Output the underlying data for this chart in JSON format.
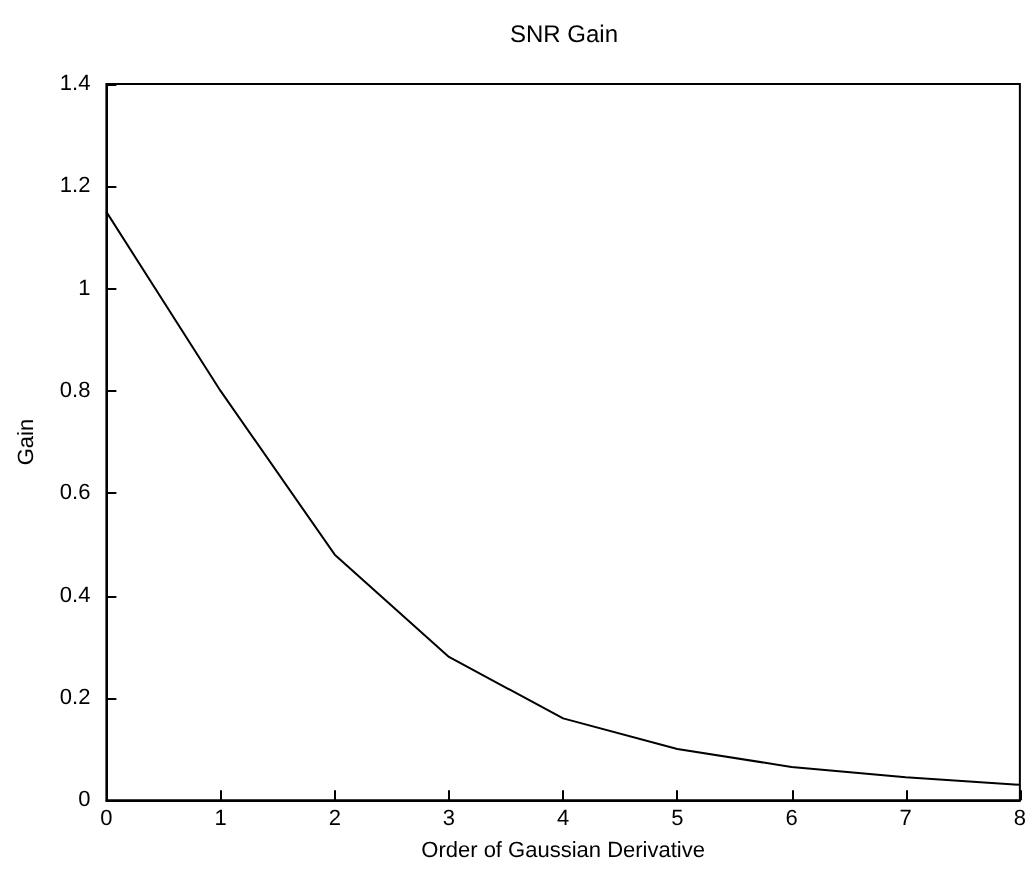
{
  "chart_data": {
    "type": "line",
    "title": "SNR Gain",
    "xlabel": "Order of Gaussian Derivative",
    "ylabel": "Gain",
    "x": [
      0,
      1,
      2,
      3,
      4,
      5,
      6,
      7,
      8
    ],
    "series": [
      {
        "color": "#000000",
        "values": [
          1.15,
          0.8,
          0.48,
          0.28,
          0.16,
          0.1,
          0.065,
          0.045,
          0.03
        ]
      }
    ],
    "xlim": [
      0,
      8
    ],
    "xticks": [
      0,
      1,
      2,
      3,
      4,
      5,
      6,
      7,
      8
    ],
    "ylim": [
      0,
      1.4
    ],
    "yticks": [
      0,
      0.2,
      0.4,
      0.6,
      0.8,
      1,
      1.2,
      1.4
    ],
    "grid": false,
    "marker": "none",
    "line_style": "solid"
  }
}
